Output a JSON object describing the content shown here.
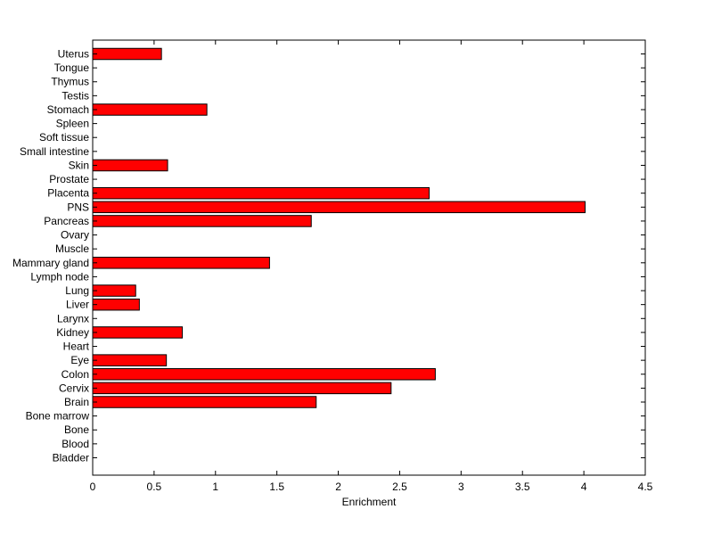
{
  "chart_data": {
    "type": "bar",
    "orientation": "horizontal",
    "title": "",
    "xlabel": "Enrichment",
    "ylabel": "",
    "xlim": [
      0,
      4.5
    ],
    "xticks": [
      0,
      0.5,
      1,
      1.5,
      2,
      2.5,
      3,
      3.5,
      4,
      4.5
    ],
    "xtick_labels": [
      "0",
      "0.5",
      "1",
      "1.5",
      "2",
      "2.5",
      "3",
      "3.5",
      "4",
      "4.5"
    ],
    "categories": [
      "Uterus",
      "Tongue",
      "Thymus",
      "Testis",
      "Stomach",
      "Spleen",
      "Soft tissue",
      "Small intestine",
      "Skin",
      "Prostate",
      "Placenta",
      "PNS",
      "Pancreas",
      "Ovary",
      "Muscle",
      "Mammary gland",
      "Lymph node",
      "Lung",
      "Liver",
      "Larynx",
      "Kidney",
      "Heart",
      "Eye",
      "Colon",
      "Cervix",
      "Brain",
      "Bone marrow",
      "Bone",
      "Blood",
      "Bladder"
    ],
    "values": [
      0.56,
      0,
      0,
      0,
      0.93,
      0,
      0,
      0,
      0.61,
      0,
      2.74,
      4.01,
      1.78,
      0,
      0,
      1.44,
      0,
      0.35,
      0.38,
      0,
      0.73,
      0,
      0.6,
      2.79,
      2.43,
      1.82,
      0,
      0,
      0,
      0
    ],
    "bar_color": "#ff0000",
    "grid": false,
    "legend": "none"
  }
}
